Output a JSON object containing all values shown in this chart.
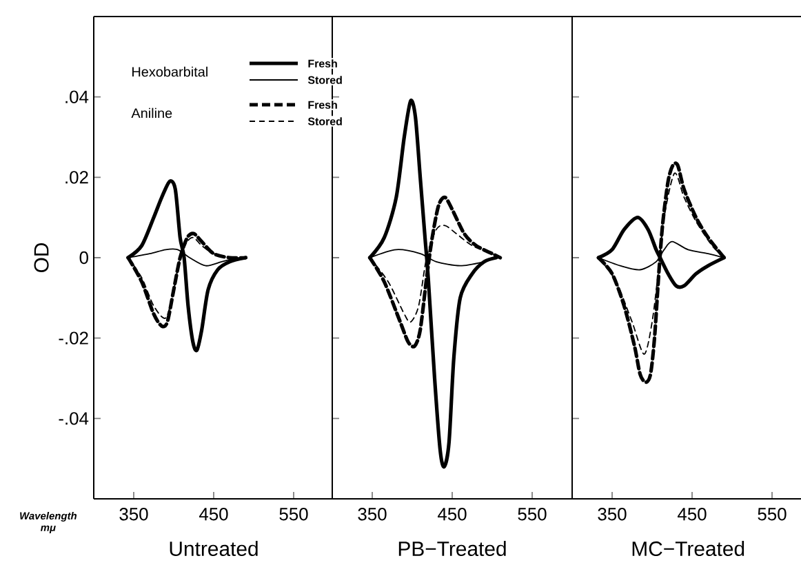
{
  "chart_data": [
    {
      "type": "line",
      "title": "Untreated",
      "xlabel": "Wavelength mμ",
      "ylabel": "OD",
      "xlim": [
        300,
        600
      ],
      "ylim": [
        -0.06,
        0.06
      ],
      "xticks": [
        350,
        450,
        550
      ],
      "yticks": [
        {
          "value": -0.04,
          "label": "-.04"
        },
        {
          "value": -0.02,
          "label": "-.02"
        },
        {
          "value": 0,
          "label": "0"
        },
        {
          "value": 0.02,
          "label": ".02"
        },
        {
          "value": 0.04,
          "label": ".04"
        }
      ],
      "legend": "top",
      "annotations": [
        "Hexobarbital",
        "Aniline"
      ],
      "series": [
        {
          "name": "Fresh",
          "color": "#000000",
          "line_style": "solid",
          "x": [
            343,
            360,
            375,
            385,
            395,
            402,
            408,
            413,
            418,
            424,
            429,
            435,
            443,
            455,
            470,
            490
          ],
          "values": [
            0,
            0.003,
            0.01,
            0.015,
            0.019,
            0.017,
            0.005,
            0,
            -0.012,
            -0.021,
            -0.023,
            -0.018,
            -0.008,
            -0.003,
            -0.001,
            0
          ]
        },
        {
          "name": "Stored",
          "color": "#000000",
          "line_style": "solid",
          "x": [
            343,
            370,
            390,
            405,
            420,
            440,
            460,
            480
          ],
          "values": [
            0,
            0.001,
            0.002,
            0.002,
            0,
            -0.002,
            -0.001,
            0
          ]
        },
        {
          "name": "Fresh",
          "color": "#000000",
          "line_style": "dashed",
          "x": [
            343,
            360,
            375,
            385,
            392,
            400,
            408,
            417,
            425,
            435,
            450,
            470,
            490
          ],
          "values": [
            0,
            -0.006,
            -0.014,
            -0.017,
            -0.016,
            -0.008,
            0,
            0.005,
            0.006,
            0.004,
            0.001,
            0,
            0
          ]
        },
        {
          "name": "Stored",
          "color": "#000000",
          "line_style": "dashed",
          "x": [
            343,
            360,
            375,
            390,
            400,
            408,
            417,
            425,
            435,
            450,
            470,
            490
          ],
          "values": [
            0,
            -0.005,
            -0.012,
            -0.015,
            -0.008,
            0,
            0.004,
            0.005,
            0.003,
            0.001,
            0,
            0
          ]
        }
      ]
    },
    {
      "type": "line",
      "title": "PB−Treated",
      "xlim": [
        300,
        600
      ],
      "ylim": [
        -0.06,
        0.06
      ],
      "xticks": [
        350,
        450,
        550
      ],
      "yticks": [
        {
          "value": -0.04,
          "label": null
        },
        {
          "value": -0.02,
          "label": null
        },
        {
          "value": 0,
          "label": null
        },
        {
          "value": 0.02,
          "label": null
        },
        {
          "value": 0.04,
          "label": null
        }
      ],
      "tick_labels": "x",
      "series": [
        {
          "color": "#000000",
          "line_style": "solid",
          "x": [
            347,
            365,
            380,
            390,
            398,
            404,
            410,
            416,
            420,
            428,
            435,
            440,
            446,
            452,
            460,
            475,
            490,
            505
          ],
          "values": [
            0,
            0.005,
            0.015,
            0.03,
            0.039,
            0.035,
            0.02,
            0.005,
            -0.005,
            -0.03,
            -0.048,
            -0.052,
            -0.046,
            -0.025,
            -0.01,
            -0.004,
            -0.001,
            0
          ]
        },
        {
          "color": "#000000",
          "line_style": "solid",
          "x": [
            347,
            380,
            410,
            430,
            460,
            490,
            505
          ],
          "values": [
            0,
            0.002,
            0.001,
            -0.001,
            -0.002,
            -0.001,
            0
          ]
        },
        {
          "color": "#000000",
          "line_style": "dashed",
          "x": [
            347,
            365,
            385,
            395,
            403,
            410,
            418,
            425,
            433,
            441,
            450,
            465,
            480,
            500,
            510
          ],
          "values": [
            0,
            -0.006,
            -0.016,
            -0.021,
            -0.022,
            -0.018,
            -0.005,
            0.005,
            0.013,
            0.015,
            0.012,
            0.006,
            0.003,
            0.001,
            0
          ]
        },
        {
          "color": "#000000",
          "line_style": "dashed",
          "x": [
            347,
            370,
            390,
            398,
            408,
            418,
            430,
            441,
            455,
            475,
            500,
            510
          ],
          "values": [
            0,
            -0.006,
            -0.014,
            -0.016,
            -0.012,
            0,
            0.007,
            0.008,
            0.006,
            0.003,
            0.001,
            0
          ]
        }
      ]
    },
    {
      "type": "line",
      "title": "MC−Treated",
      "xlim": [
        300,
        590
      ],
      "ylim": [
        -0.06,
        0.06
      ],
      "xticks": [
        350,
        450,
        550
      ],
      "yticks": [
        {
          "value": -0.04,
          "label": null
        },
        {
          "value": -0.02,
          "label": null
        },
        {
          "value": 0,
          "label": null
        },
        {
          "value": 0.02,
          "label": null
        },
        {
          "value": 0.04,
          "label": null
        }
      ],
      "tick_labels": "x",
      "series": [
        {
          "color": "#000000",
          "line_style": "solid",
          "x": [
            333,
            350,
            365,
            382,
            395,
            405,
            410,
            420,
            430,
            440,
            455,
            470,
            490
          ],
          "values": [
            0,
            0.002,
            0.007,
            0.01,
            0.007,
            0.002,
            0,
            -0.004,
            -0.007,
            -0.007,
            -0.004,
            -0.002,
            0
          ]
        },
        {
          "color": "#000000",
          "line_style": "solid",
          "x": [
            333,
            360,
            385,
            405,
            415,
            425,
            445,
            470,
            490
          ],
          "values": [
            0,
            -0.002,
            -0.003,
            -0.001,
            0.002,
            0.004,
            0.002,
            0.001,
            0
          ]
        },
        {
          "color": "#000000",
          "line_style": "dashed",
          "x": [
            333,
            350,
            365,
            378,
            385,
            392,
            398,
            403,
            408,
            413,
            420,
            426,
            432,
            440,
            455,
            470,
            490
          ],
          "values": [
            0,
            -0.004,
            -0.012,
            -0.022,
            -0.029,
            -0.031,
            -0.029,
            -0.02,
            -0.005,
            0.008,
            0.019,
            0.023,
            0.023,
            0.017,
            0.01,
            0.005,
            0
          ]
        },
        {
          "color": "#000000",
          "line_style": "dashed",
          "x": [
            333,
            355,
            375,
            390,
            400,
            408,
            415,
            428,
            440,
            455,
            475,
            490
          ],
          "values": [
            0,
            -0.006,
            -0.016,
            -0.024,
            -0.016,
            -0.003,
            0.01,
            0.021,
            0.015,
            0.009,
            0.003,
            0
          ]
        }
      ]
    }
  ]
}
